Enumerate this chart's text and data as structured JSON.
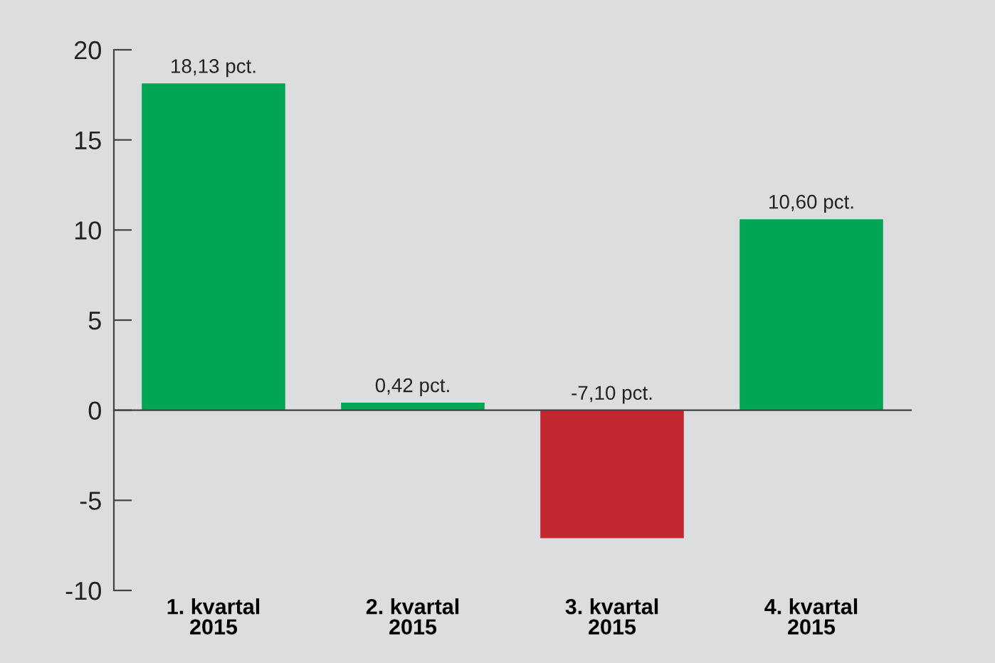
{
  "chart_data": {
    "type": "bar",
    "categories": [
      "1. kvartal\n2015",
      "2. kvartal\n2015",
      "3. kvartal\n2015",
      "4. kvartal\n2015"
    ],
    "values": [
      18.13,
      0.42,
      -7.1,
      10.6
    ],
    "colors": [
      "#00a651",
      "#00a651",
      "#c1272d",
      "#00a651"
    ],
    "value_labels": [
      "18,13 pct.",
      "0,42 pct.",
      "-7,10 pct.",
      "10,60 pct."
    ],
    "ylim": [
      -10,
      20
    ],
    "yticks": [
      -10,
      -5,
      0,
      5,
      10,
      15,
      20
    ],
    "legend": false
  }
}
